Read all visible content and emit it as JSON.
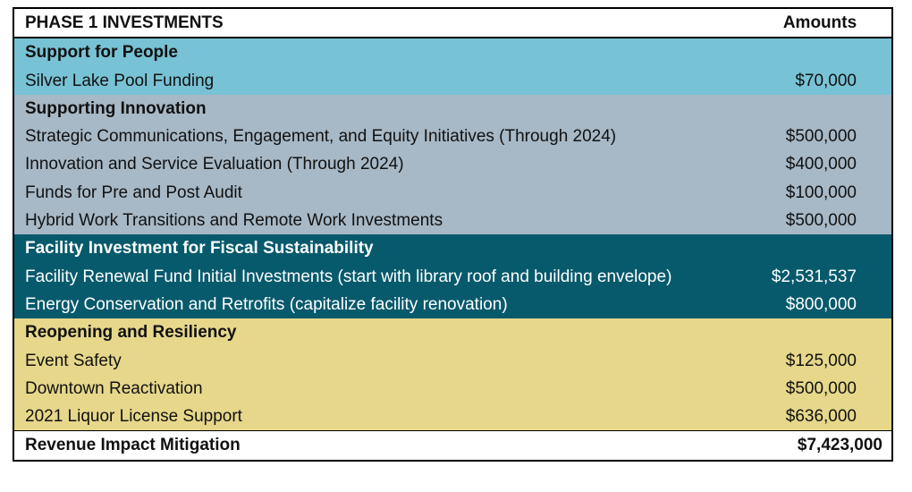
{
  "header": {
    "title": "PHASE 1 INVESTMENTS",
    "amounts": "Amounts"
  },
  "sections": [
    {
      "title": "Support for People",
      "rows": [
        [
          "Silver Lake Pool Funding",
          "$70,000"
        ]
      ]
    },
    {
      "title": "Supporting Innovation",
      "rows": [
        [
          "Strategic Communications, Engagement, and Equity Initiatives (Through 2024)",
          "$500,000"
        ],
        [
          "Innovation and Service Evaluation (Through 2024)",
          "$400,000"
        ],
        [
          "Funds for Pre and Post Audit",
          "$100,000"
        ],
        [
          "Hybrid Work Transitions and Remote Work Investments",
          "$500,000"
        ]
      ]
    },
    {
      "title": "Facility Investment for Fiscal Sustainability",
      "rows": [
        [
          "Facility Renewal Fund Initial Investments (start with library roof and building envelope)",
          "$2,531,537"
        ],
        [
          "Energy Conservation and Retrofits (capitalize facility renovation)",
          "$800,000"
        ]
      ]
    },
    {
      "title": "Reopening and Resiliency",
      "rows": [
        [
          "Event Safety",
          "$125,000"
        ],
        [
          "Downtown Reactivation",
          "$500,000"
        ],
        [
          "2021 Liquor License Support",
          "$636,000"
        ]
      ]
    }
  ],
  "total": {
    "label": "Revenue Impact Mitigation",
    "amount": "$7,423,000"
  }
}
